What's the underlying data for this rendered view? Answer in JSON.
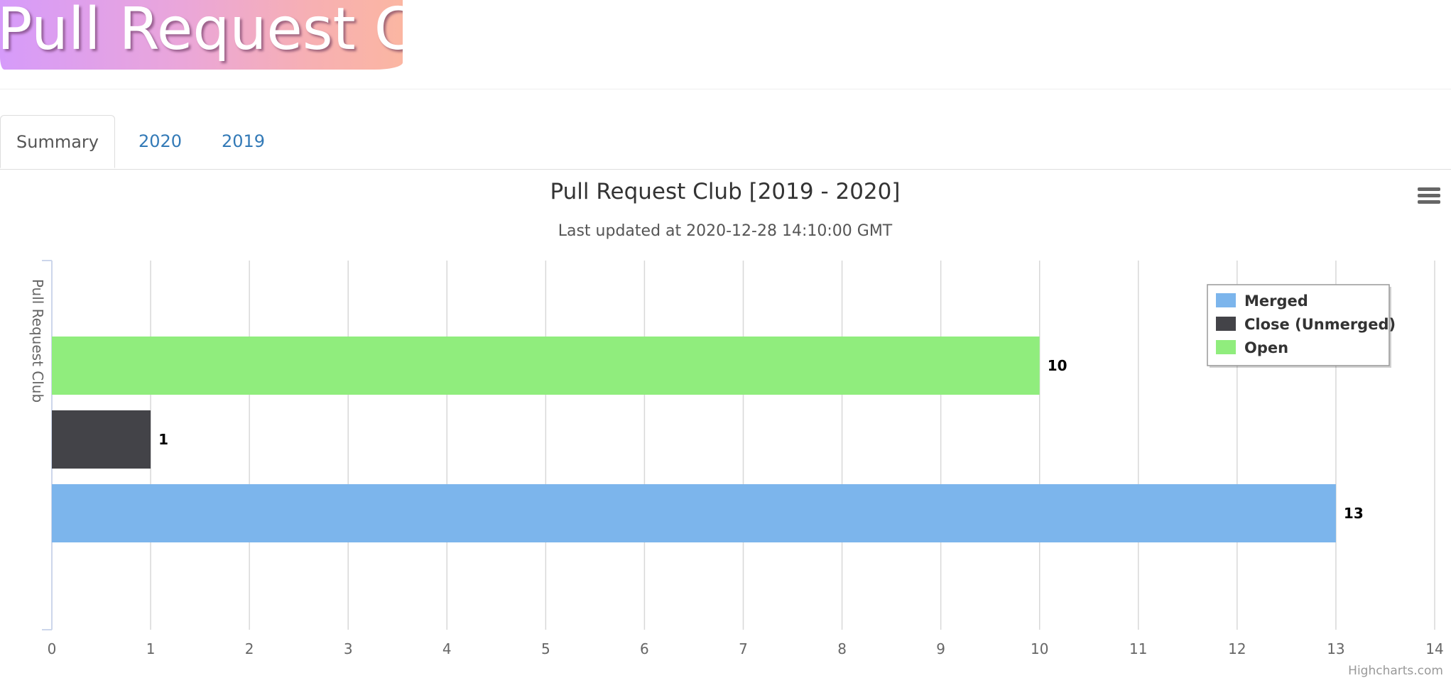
{
  "logo": {
    "text": "Pull Request Club"
  },
  "tabs": [
    {
      "label": "Summary",
      "active": true
    },
    {
      "label": "2020",
      "active": false
    },
    {
      "label": "2019",
      "active": false
    }
  ],
  "credits": "Highcharts.com",
  "chart_data": {
    "type": "bar",
    "orientation": "horizontal",
    "title": "Pull Request Club [2019 - 2020]",
    "subtitle": "Last updated at 2020-12-28 14:10:00 GMT",
    "xlabel": "Pull Request Club",
    "xlim": [
      0,
      14
    ],
    "ticks": [
      0,
      1,
      2,
      3,
      4,
      5,
      6,
      7,
      8,
      9,
      10,
      11,
      12,
      13,
      14
    ],
    "grid": true,
    "legend_position": "top-right",
    "series": [
      {
        "name": "Merged",
        "values": [
          13
        ],
        "color": "#7cb5ec"
      },
      {
        "name": "Close (Unmerged)",
        "values": [
          1
        ],
        "color": "#434348"
      },
      {
        "name": "Open",
        "values": [
          10
        ],
        "color": "#90ed7d"
      }
    ]
  }
}
